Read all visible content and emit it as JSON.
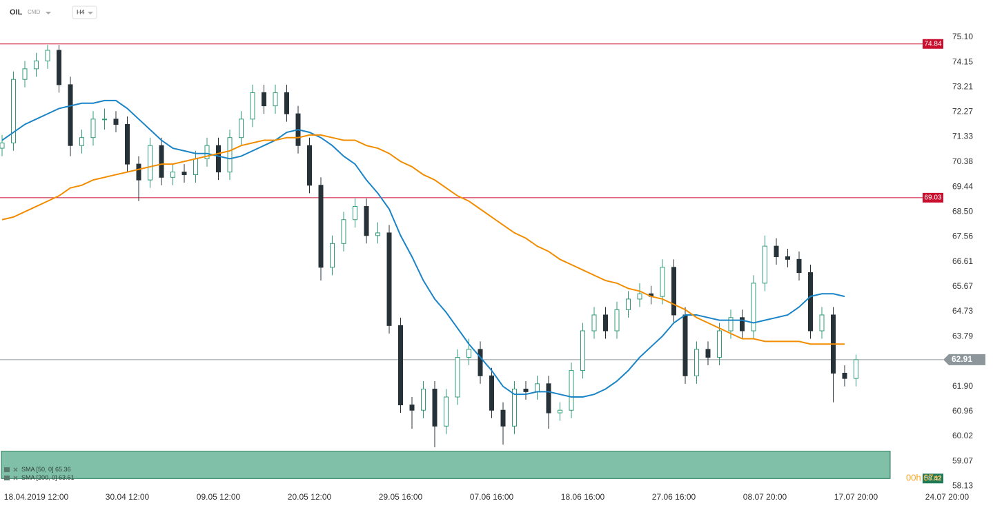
{
  "header": {
    "instrument": "OIL",
    "market": "CMD",
    "timeframe": "H4"
  },
  "chart_data": {
    "type": "candlestick",
    "categories": [
      null,
      null,
      null,
      "18.04.2019 12:00",
      null,
      null,
      null,
      null,
      null,
      null,
      null,
      "30.04 12:00",
      null,
      null,
      null,
      null,
      null,
      null,
      null,
      "09.05 12:00",
      null,
      null,
      null,
      null,
      null,
      null,
      null,
      "20.05 12:00",
      null,
      null,
      null,
      null,
      null,
      null,
      null,
      "29.05 16:00",
      null,
      null,
      null,
      null,
      null,
      null,
      null,
      "07.06 16:00",
      null,
      null,
      null,
      null,
      null,
      null,
      null,
      "18.06 16:00",
      null,
      null,
      null,
      null,
      null,
      null,
      null,
      "27.06 16:00",
      null,
      null,
      null,
      null,
      null,
      null,
      null,
      "08.07 20:00",
      null,
      null,
      null,
      null,
      null,
      null,
      null,
      "17.07 20:00",
      null,
      null,
      null,
      null,
      null,
      null,
      null,
      "24.07 20:00"
    ],
    "open": [
      70.9,
      71.1,
      73.5,
      73.9,
      74.2,
      74.6,
      73.3,
      71.0,
      71.3,
      72.0,
      72.0,
      71.8,
      70.3,
      69.7,
      71.0,
      69.8,
      70.0,
      69.9,
      70.5,
      71.0,
      70.0,
      71.3,
      72.0,
      73.0,
      72.5,
      73.0,
      72.2,
      71.0,
      69.5,
      66.4,
      67.3,
      68.2,
      68.7,
      67.6,
      67.7,
      64.2,
      61.2,
      61.0,
      61.8,
      60.4,
      61.5,
      63.0,
      63.3,
      62.3,
      61.0,
      60.4,
      61.8,
      61.7,
      62.0,
      60.9,
      61.0,
      62.5,
      64.0,
      64.6,
      64.0,
      64.8,
      65.2,
      65.4,
      65.3,
      66.4,
      64.6,
      62.3,
      63.3,
      63.0,
      64.0,
      64.5,
      64.0,
      65.8,
      67.2,
      66.8,
      66.7,
      66.2,
      64.0,
      64.6,
      62.4,
      62.2,
      null,
      null,
      null,
      null,
      null,
      null,
      null,
      null
    ],
    "high": [
      71.4,
      73.8,
      74.2,
      74.5,
      74.8,
      74.8,
      73.6,
      71.6,
      72.3,
      72.4,
      72.3,
      72.1,
      70.6,
      71.3,
      71.3,
      70.3,
      70.3,
      70.8,
      71.3,
      71.3,
      71.6,
      72.3,
      73.3,
      73.3,
      73.3,
      73.3,
      72.5,
      71.3,
      69.8,
      67.6,
      68.5,
      69.0,
      69.0,
      68.1,
      68.0,
      64.5,
      61.5,
      62.1,
      62.1,
      61.8,
      63.3,
      63.7,
      63.6,
      62.6,
      61.3,
      62.1,
      62.1,
      62.3,
      62.3,
      61.3,
      62.8,
      64.3,
      64.9,
      64.9,
      65.1,
      65.5,
      65.8,
      65.7,
      66.7,
      66.7,
      64.9,
      63.6,
      63.6,
      64.3,
      64.8,
      64.8,
      66.1,
      67.6,
      67.5,
      67.1,
      67.0,
      66.5,
      64.9,
      64.9,
      62.7,
      63.1,
      null,
      null,
      null,
      null,
      null,
      null,
      null,
      null
    ],
    "low": [
      70.6,
      70.8,
      73.2,
      73.6,
      73.9,
      73.0,
      70.6,
      70.7,
      71.0,
      71.6,
      71.5,
      70.0,
      68.9,
      69.4,
      69.5,
      69.5,
      69.6,
      69.6,
      70.2,
      69.7,
      69.7,
      71.0,
      71.7,
      72.2,
      72.2,
      71.9,
      70.7,
      69.2,
      65.9,
      66.1,
      67.0,
      67.9,
      67.3,
      67.3,
      63.9,
      60.9,
      60.3,
      60.7,
      59.6,
      60.1,
      61.2,
      62.7,
      62.0,
      60.7,
      59.7,
      60.1,
      61.4,
      61.4,
      60.3,
      60.6,
      60.7,
      62.2,
      63.7,
      63.7,
      63.7,
      64.5,
      64.9,
      65.0,
      65.0,
      64.3,
      62.0,
      62.0,
      62.7,
      62.7,
      63.7,
      63.7,
      63.7,
      65.5,
      66.5,
      66.4,
      65.9,
      63.7,
      63.7,
      61.3,
      61.9,
      61.9,
      null,
      null,
      null,
      null,
      null,
      null,
      null,
      null
    ],
    "close": [
      71.1,
      73.5,
      73.9,
      74.2,
      74.6,
      73.3,
      71.0,
      71.3,
      72.0,
      72.0,
      71.8,
      70.3,
      69.7,
      71.0,
      69.8,
      70.0,
      69.9,
      70.5,
      71.0,
      70.0,
      71.3,
      72.0,
      73.0,
      72.5,
      73.0,
      72.2,
      71.0,
      69.5,
      66.4,
      67.3,
      68.2,
      68.7,
      67.6,
      67.7,
      64.2,
      61.2,
      61.0,
      61.8,
      60.4,
      61.5,
      63.0,
      63.3,
      62.3,
      61.0,
      60.4,
      61.8,
      61.7,
      62.0,
      60.9,
      61.0,
      62.5,
      64.0,
      64.6,
      64.0,
      64.8,
      65.2,
      65.4,
      65.3,
      66.4,
      64.6,
      62.3,
      63.3,
      63.0,
      64.0,
      64.5,
      64.0,
      65.8,
      67.2,
      66.8,
      66.7,
      66.2,
      64.0,
      64.6,
      62.4,
      62.2,
      62.91,
      null,
      null,
      null,
      null,
      null,
      null,
      null,
      null
    ],
    "up_color": "#2f9c74",
    "down_color": "#263238",
    "series": [
      {
        "name": "SMA [50, 0]",
        "last": 65.36,
        "color": "#1a84c6",
        "values": [
          71.2,
          71.5,
          71.8,
          72.0,
          72.2,
          72.4,
          72.5,
          72.6,
          72.6,
          72.7,
          72.7,
          72.4,
          72.0,
          71.6,
          71.2,
          70.9,
          70.8,
          70.7,
          70.7,
          70.6,
          70.5,
          70.6,
          70.8,
          71.0,
          71.2,
          71.5,
          71.6,
          71.5,
          71.3,
          71.0,
          70.6,
          70.3,
          69.7,
          69.2,
          68.6,
          67.6,
          66.8,
          65.9,
          65.2,
          64.7,
          64.1,
          63.5,
          63.0,
          62.5,
          61.9,
          61.6,
          61.6,
          61.7,
          61.7,
          61.6,
          61.5,
          61.5,
          61.6,
          61.8,
          62.1,
          62.5,
          63.0,
          63.4,
          63.8,
          64.3,
          64.6,
          64.6,
          64.5,
          64.4,
          64.4,
          64.4,
          64.3,
          64.4,
          64.5,
          64.6,
          64.9,
          65.3,
          65.4,
          65.4,
          65.3,
          null,
          null,
          null,
          null,
          null,
          null,
          null,
          null,
          null
        ]
      },
      {
        "name": "SMA [200, 0]",
        "last": 63.61,
        "color": "#f28c00",
        "values": [
          68.2,
          68.3,
          68.5,
          68.7,
          68.9,
          69.1,
          69.4,
          69.5,
          69.7,
          69.8,
          69.9,
          70.0,
          70.1,
          70.2,
          70.3,
          70.3,
          70.4,
          70.5,
          70.6,
          70.7,
          70.8,
          71.0,
          71.1,
          71.2,
          71.2,
          71.3,
          71.3,
          71.4,
          71.4,
          71.3,
          71.2,
          71.2,
          71.0,
          70.9,
          70.7,
          70.4,
          70.2,
          69.9,
          69.7,
          69.4,
          69.1,
          68.9,
          68.6,
          68.3,
          68.0,
          67.7,
          67.5,
          67.2,
          67.0,
          66.7,
          66.5,
          66.3,
          66.1,
          65.9,
          65.8,
          65.6,
          65.5,
          65.3,
          65.2,
          65.0,
          64.8,
          64.5,
          64.3,
          64.1,
          63.9,
          63.7,
          63.7,
          63.6,
          63.6,
          63.6,
          63.6,
          63.5,
          63.5,
          63.5,
          63.5,
          null,
          null,
          null,
          null,
          null,
          null,
          null,
          null,
          null
        ]
      }
    ],
    "levels": [
      {
        "value": 74.84,
        "color": "#c8102e"
      },
      {
        "value": 69.03,
        "color": "#c8102e"
      }
    ],
    "current_price": {
      "value": 62.91,
      "color": "#8c969b"
    },
    "zone": {
      "top": 59.45,
      "bottom": 58.42,
      "color": "#80c0a8",
      "label_color": "#1f7a55"
    },
    "countdown": "00h 07m",
    "ylim": [
      57.92,
      76.5
    ],
    "yticks": [
      {
        "value": 75.1,
        "label": "75.10"
      },
      74.15,
      73.21,
      72.27,
      71.33,
      70.38,
      69.44,
      {
        "value": 68.5,
        "label": "68.50"
      },
      67.56,
      66.61,
      65.67,
      64.73,
      63.79,
      {
        "value": 61.9,
        "label": "61.90"
      },
      60.96,
      60.02,
      59.07,
      58.13
    ],
    "grid": false
  }
}
